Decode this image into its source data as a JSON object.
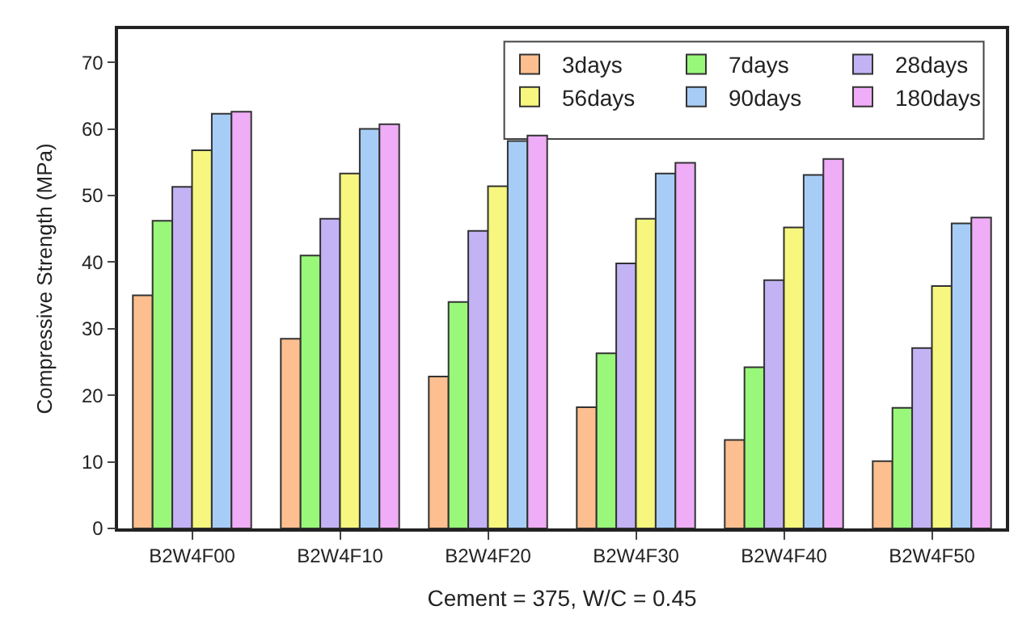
{
  "chart_data": {
    "type": "bar",
    "xlabel": "Cement = 375, W/C = 0.45",
    "ylabel": "Compressive Strength (MPa)",
    "categories": [
      "B2W4F00",
      "B2W4F10",
      "B2W4F20",
      "B2W4F30",
      "B2W4F40",
      "B2W4F50"
    ],
    "series": [
      {
        "name": "3days",
        "color": "#fdbf8f",
        "values": [
          35,
          28.5,
          22.8,
          18.2,
          13.3,
          10.1
        ]
      },
      {
        "name": "7days",
        "color": "#99f77a",
        "values": [
          46.2,
          41,
          34,
          26.3,
          24.2,
          18.1
        ]
      },
      {
        "name": "28days",
        "color": "#c3b3f5",
        "values": [
          51.3,
          46.5,
          44.7,
          39.8,
          37.3,
          27.1
        ]
      },
      {
        "name": "56days",
        "color": "#f7f77f",
        "values": [
          56.8,
          53.3,
          51.4,
          46.5,
          45.2,
          36.4
        ]
      },
      {
        "name": "90days",
        "color": "#a7cdf7",
        "values": [
          62.3,
          60,
          58.2,
          53.3,
          53.1,
          45.8
        ]
      },
      {
        "name": "180days",
        "color": "#f0adf7",
        "values": [
          62.6,
          60.7,
          59,
          54.9,
          55.5,
          46.7
        ]
      }
    ],
    "ylim": [
      0,
      75
    ],
    "yticks": [
      0,
      10,
      20,
      30,
      40,
      50,
      60,
      70
    ],
    "legend": "top right"
  }
}
